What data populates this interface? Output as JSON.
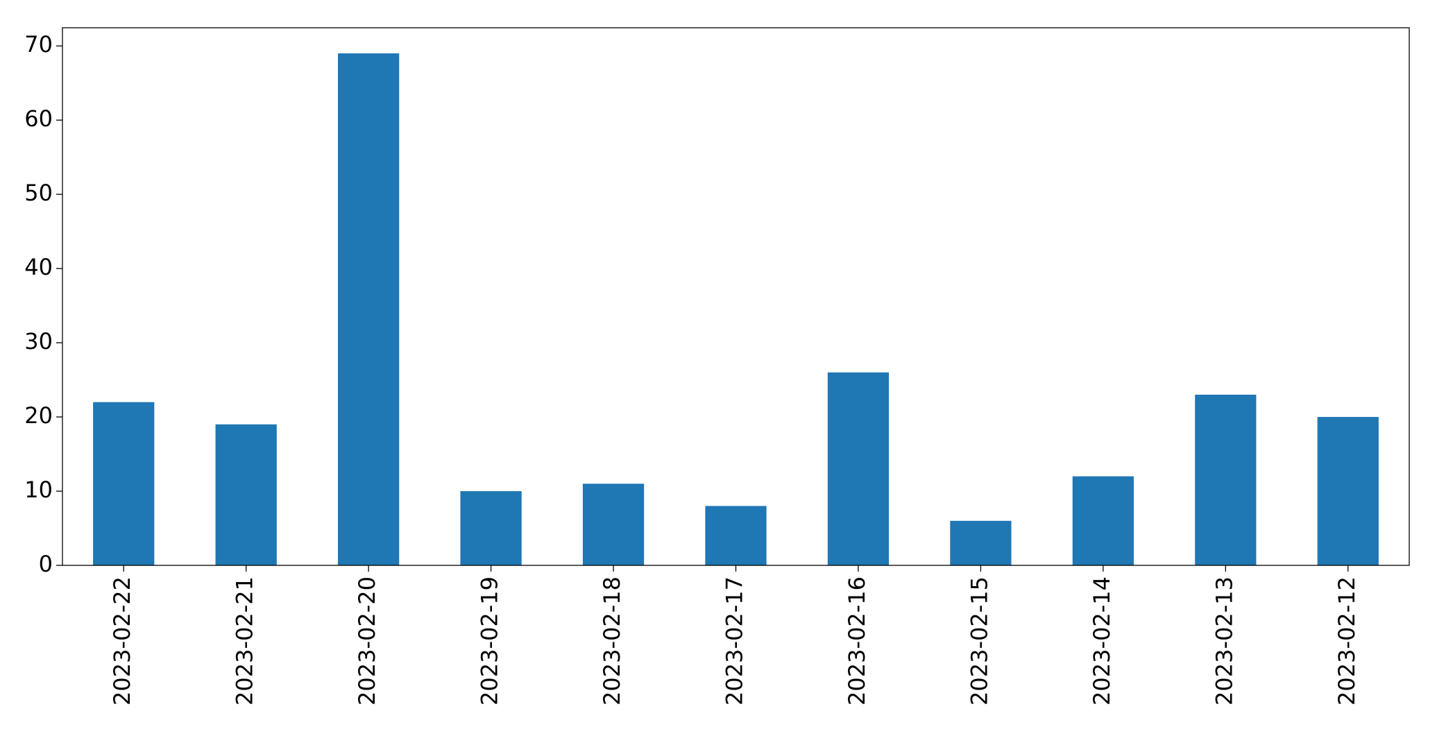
{
  "chart_data": {
    "type": "bar",
    "categories": [
      "2023-02-22",
      "2023-02-21",
      "2023-02-20",
      "2023-02-19",
      "2023-02-18",
      "2023-02-17",
      "2023-02-16",
      "2023-02-15",
      "2023-02-14",
      "2023-02-13",
      "2023-02-12"
    ],
    "values": [
      22,
      19,
      69,
      10,
      11,
      8,
      26,
      6,
      12,
      23,
      20
    ],
    "color": "#1f77b4",
    "ylim": [
      0,
      72.45
    ],
    "yticks": [
      0,
      10,
      20,
      30,
      40,
      50,
      60,
      70
    ],
    "grid": false
  }
}
